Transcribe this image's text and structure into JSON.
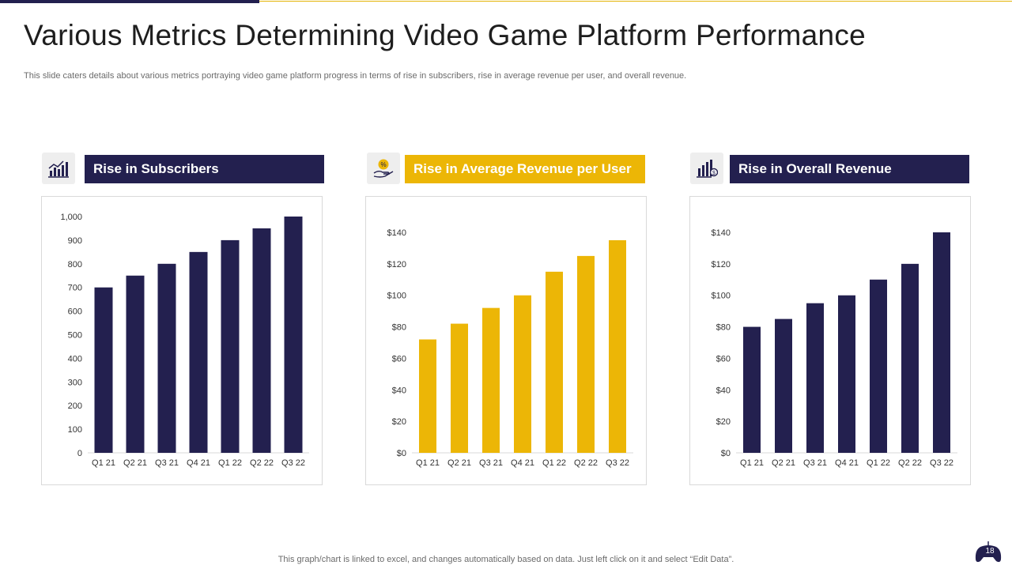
{
  "slide": {
    "title": "Various Metrics Determining Video Game Platform Performance",
    "subtitle": "This slide caters details about various metrics portraying video game platform progress in terms of rise in subscribers, rise in average revenue per user, and overall revenue.",
    "footer_note": "This graph/chart is linked to excel,  and changes automatically based on data. Just left click on it and select “Edit Data”.",
    "page_number": "18"
  },
  "colors": {
    "navy": "#23204f",
    "gold": "#ecb606"
  },
  "icons": [
    "growth-chart-icon",
    "revenue-hand-icon",
    "revenue-bars-icon",
    "gamepad-icon"
  ],
  "panels": [
    {
      "header": "Rise in Subscribers",
      "color": "#23204f"
    },
    {
      "header": "Rise in Average Revenue per User",
      "color": "#ecb606"
    },
    {
      "header": "Rise in Overall Revenue",
      "color": "#23204f"
    }
  ],
  "chart_data": [
    {
      "type": "bar",
      "title": "Rise in Subscribers",
      "categories": [
        "Q1 21",
        "Q2 21",
        "Q3 21",
        "Q4 21",
        "Q1 22",
        "Q2 22",
        "Q3 22"
      ],
      "values": [
        700,
        750,
        800,
        850,
        900,
        950,
        1000
      ],
      "ylim": [
        0,
        1000
      ],
      "yticks": [
        0,
        100,
        200,
        300,
        400,
        500,
        600,
        700,
        800,
        900,
        1000
      ],
      "ytick_labels": [
        "0",
        "100",
        "200",
        "300",
        "400",
        "500",
        "600",
        "700",
        "800",
        "900",
        "1,000"
      ],
      "color": "#23204f",
      "grid": false,
      "xlabel": "",
      "ylabel": ""
    },
    {
      "type": "bar",
      "title": "Rise in Average Revenue per User",
      "categories": [
        "Q1 21",
        "Q2 21",
        "Q3 21",
        "Q4 21",
        "Q1 22",
        "Q2 22",
        "Q3 22"
      ],
      "values": [
        72,
        82,
        92,
        100,
        115,
        125,
        135
      ],
      "ylim": [
        0,
        140
      ],
      "yticks": [
        0,
        20,
        40,
        60,
        80,
        100,
        120,
        140
      ],
      "ytick_labels": [
        "$0",
        "$20",
        "$40",
        "$60",
        "$80",
        "$100",
        "$120",
        "$140"
      ],
      "color": "#ecb606",
      "grid": false,
      "xlabel": "",
      "ylabel": ""
    },
    {
      "type": "bar",
      "title": "Rise in Overall Revenue",
      "categories": [
        "Q1 21",
        "Q2 21",
        "Q3 21",
        "Q4 21",
        "Q1 22",
        "Q2 22",
        "Q3 22"
      ],
      "values": [
        80,
        85,
        95,
        100,
        110,
        120,
        140
      ],
      "ylim": [
        0,
        140
      ],
      "yticks": [
        0,
        20,
        40,
        60,
        80,
        100,
        120,
        140
      ],
      "ytick_labels": [
        "$0",
        "$20",
        "$40",
        "$60",
        "$80",
        "$100",
        "$120",
        "$140"
      ],
      "color": "#23204f",
      "grid": false,
      "xlabel": "",
      "ylabel": ""
    }
  ]
}
